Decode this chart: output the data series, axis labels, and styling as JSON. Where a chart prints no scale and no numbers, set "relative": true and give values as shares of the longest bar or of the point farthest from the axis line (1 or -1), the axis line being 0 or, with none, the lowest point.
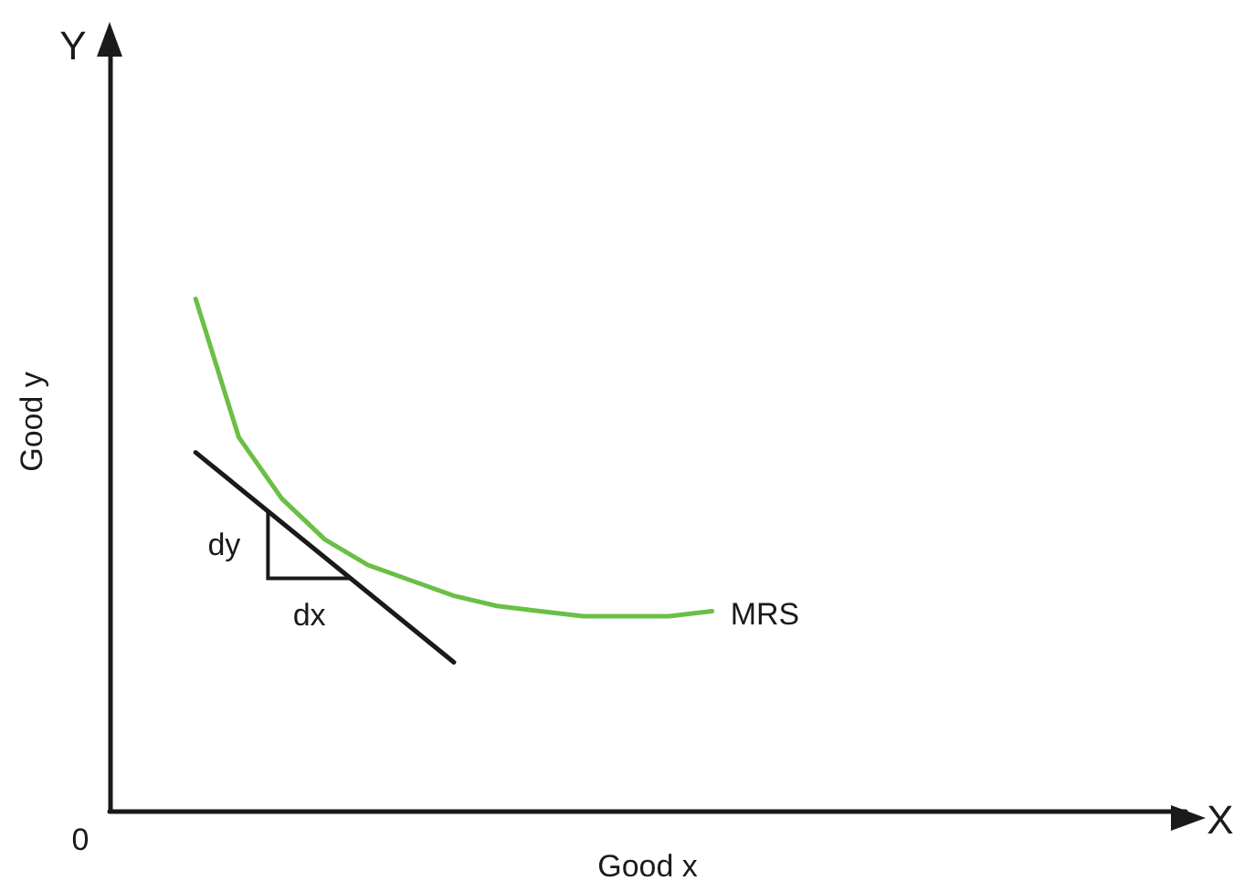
{
  "chart_data": {
    "type": "line",
    "relative": true,
    "xlabel": "Good x",
    "ylabel": "Good y",
    "categories": [
      null,
      null,
      null,
      null,
      null,
      null,
      null,
      null,
      null,
      null,
      null,
      null,
      null,
      null,
      null,
      null,
      null,
      null,
      null,
      null,
      null,
      null,
      null,
      null,
      null,
      null
    ],
    "series": [
      {
        "name": "MRS",
        "color": "#6abf45",
        "values": [
          null,
          null,
          1,
          0.73,
          0.61,
          0.53,
          0.48,
          0.45,
          0.42,
          0.4,
          0.39,
          0.38,
          0.38,
          0.38,
          0.39,
          null,
          null,
          null,
          null,
          null,
          null,
          null,
          null,
          null,
          null,
          null
        ]
      },
      {
        "color": "#1a1a1a",
        "values": [
          null,
          null,
          0.7,
          null,
          null,
          null,
          null,
          null,
          0.29,
          null,
          null,
          null,
          null,
          null,
          null,
          null,
          null,
          null,
          null,
          null,
          null,
          null,
          null,
          null,
          null,
          null
        ]
      }
    ],
    "annotations": [
      "Y",
      "X",
      "0",
      "dy",
      "dx"
    ],
    "legend": false,
    "grid": false,
    "marker": "none"
  }
}
